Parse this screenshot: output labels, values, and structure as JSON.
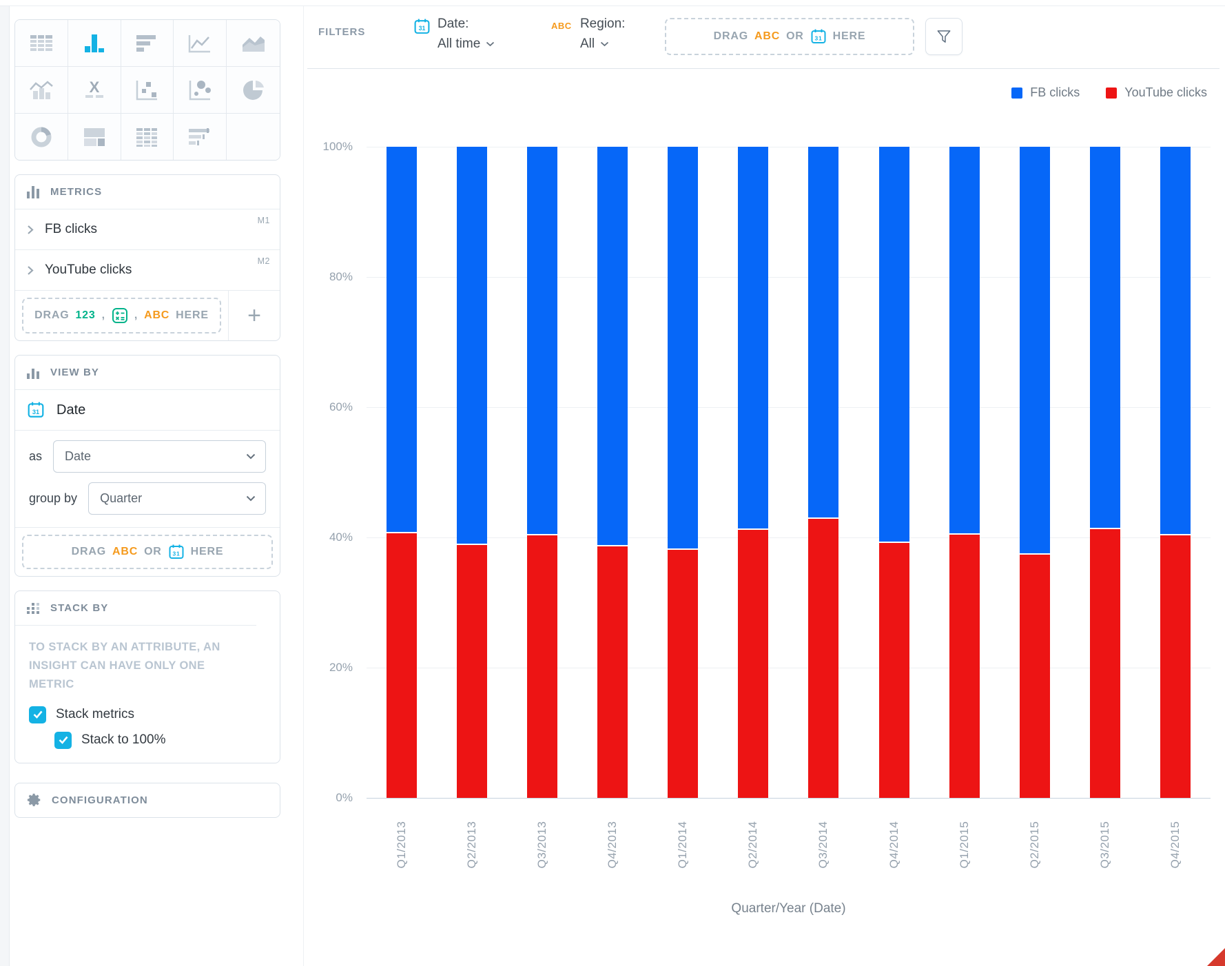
{
  "vis_picker": {
    "selected": "column-chart",
    "icons": [
      "table",
      "column-chart",
      "bar-chart",
      "line-chart",
      "area-chart",
      "combo-chart",
      "headline",
      "scatter-plot",
      "bubble-chart",
      "pie-chart",
      "donut-chart",
      "treemap",
      "heatmap",
      "bullet-chart",
      "empty"
    ]
  },
  "metrics": {
    "title": "METRICS",
    "items": [
      {
        "label": "FB clicks",
        "tag": "M1"
      },
      {
        "label": "YouTube clicks",
        "tag": "M2"
      }
    ],
    "drop_zone": {
      "drag": "DRAG",
      "token_num": "123",
      "comma1": ",",
      "comma2": ",",
      "token_abc": "ABC",
      "here": "HERE"
    },
    "add_label": "+"
  },
  "view_by": {
    "title": "VIEW BY",
    "attribute": "Date",
    "as_label": "as",
    "as_value": "Date",
    "group_by_label": "group by",
    "group_by_value": "Quarter",
    "drop_zone": {
      "drag": "DRAG",
      "token_abc": "ABC",
      "or": "OR",
      "here": "HERE"
    }
  },
  "stack_by": {
    "title": "STACK BY",
    "hint": "TO STACK BY AN ATTRIBUTE, AN INSIGHT CAN HAVE ONLY ONE METRIC",
    "stack_metrics_label": "Stack metrics",
    "stack_metrics_checked": true,
    "stack_100_label": "Stack to 100%",
    "stack_100_checked": true
  },
  "configuration": {
    "title": "CONFIGURATION"
  },
  "filter_bar": {
    "label": "FILTERS",
    "date_filter": {
      "name": "Date:",
      "value": "All time"
    },
    "region_filter": {
      "abc": "ABC",
      "name": "Region:",
      "value": "All"
    },
    "drop_zone": {
      "drag": "DRAG",
      "token_abc": "ABC",
      "or": "OR",
      "here": "HERE"
    }
  },
  "colors": {
    "accent_cyan": "#14b2e4",
    "green": "#00b38a",
    "orange": "#f59a1d",
    "fb_blue": "#0667f8",
    "youtube_red": "#ed1414"
  },
  "chart_data": {
    "type": "bar",
    "stacked": true,
    "stack_to_100": true,
    "title": "",
    "xlabel": "Quarter/Year (Date)",
    "ylabel": "",
    "ylim": [
      0,
      100
    ],
    "grid": true,
    "legend_position": "top-right",
    "y_ticks": [
      "0%",
      "20%",
      "40%",
      "60%",
      "80%",
      "100%"
    ],
    "categories": [
      "Q1/2013",
      "Q2/2013",
      "Q3/2013",
      "Q4/2013",
      "Q1/2014",
      "Q2/2014",
      "Q3/2014",
      "Q4/2014",
      "Q1/2015",
      "Q2/2015",
      "Q3/2015",
      "Q4/2015"
    ],
    "series": [
      {
        "name": "FB clicks",
        "color": "#0667f8",
        "values_pct": [
          59.2,
          61.0,
          59.5,
          61.2,
          61.7,
          58.6,
          56.9,
          60.6,
          59.4,
          62.4,
          58.5,
          59.5
        ]
      },
      {
        "name": "YouTube clicks",
        "color": "#ed1414",
        "values_pct": [
          40.8,
          39.0,
          40.5,
          38.8,
          38.3,
          41.4,
          43.1,
          39.4,
          40.6,
          37.6,
          41.5,
          40.5
        ]
      }
    ]
  }
}
